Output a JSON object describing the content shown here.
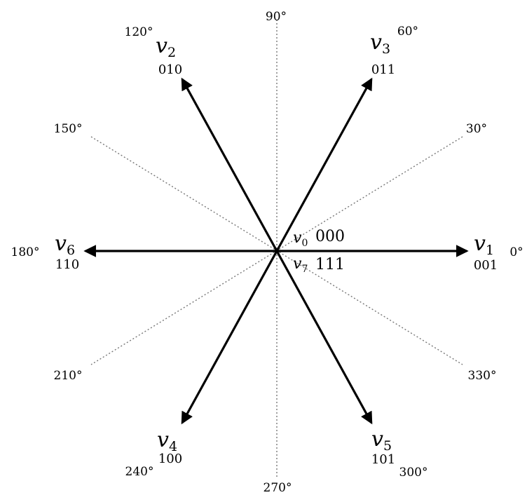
{
  "angle_labels": [
    "0°",
    "30°",
    "60°",
    "90°",
    "120°",
    "150°",
    "180°",
    "210°",
    "240°",
    "270°",
    "300°",
    "330°"
  ],
  "vectors": [
    {
      "symbol": "v",
      "index": "1",
      "code": "001",
      "angle": 0
    },
    {
      "symbol": "v",
      "index": "3",
      "code": "011",
      "angle": 60
    },
    {
      "symbol": "v",
      "index": "2",
      "code": "010",
      "angle": 120
    },
    {
      "symbol": "v",
      "index": "6",
      "code": "110",
      "angle": 180
    },
    {
      "symbol": "v",
      "index": "4",
      "code": "100",
      "angle": 240
    },
    {
      "symbol": "v",
      "index": "5",
      "code": "101",
      "angle": 300
    }
  ],
  "zero_vectors": [
    {
      "symbol": "v",
      "index": "0",
      "code": "000"
    },
    {
      "symbol": "v",
      "index": "7",
      "code": "111"
    }
  ]
}
